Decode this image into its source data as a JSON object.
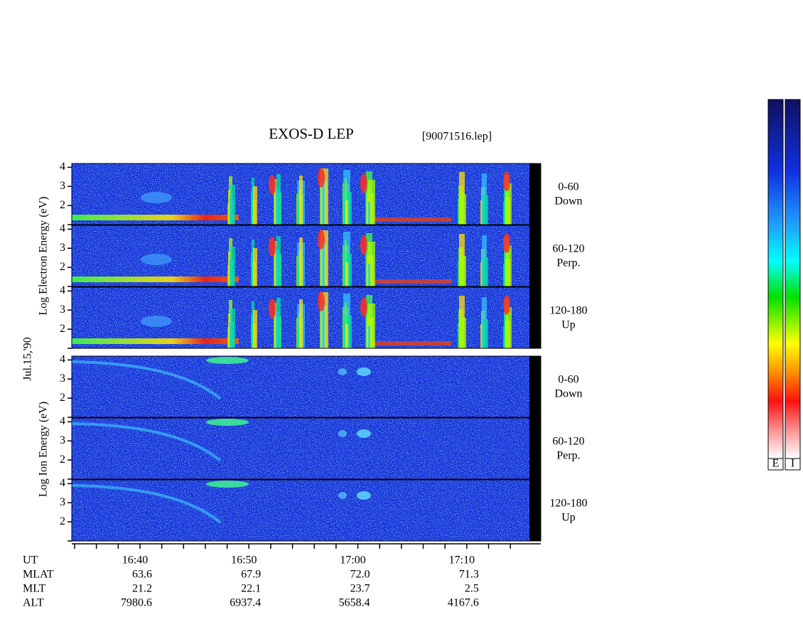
{
  "title": "EXOS-D LEP",
  "file": "[90071516.lep]",
  "date": "Jul.15,'90",
  "electron_axis_label": "Log Electron Energy (eV)",
  "ion_axis_label": "Log Ion Energy (eV)",
  "ylim": [
    1,
    4.2
  ],
  "yticks": [
    2,
    3,
    4
  ],
  "pitch_angles": [
    {
      "range": "0-60",
      "direction": "Down"
    },
    {
      "range": "60-120",
      "direction": "Perp."
    },
    {
      "range": "120-180",
      "direction": "Up"
    }
  ],
  "ephemeris": {
    "rows": [
      {
        "label": "UT",
        "values": [
          "16:40",
          "16:50",
          "17:00",
          "17:10"
        ]
      },
      {
        "label": "MLAT",
        "values": [
          "63.6",
          "67.9",
          "72.0",
          "71.3"
        ]
      },
      {
        "label": "MLT",
        "values": [
          "21.2",
          "22.1",
          "23.7",
          "2.5"
        ]
      },
      {
        "label": "ALT",
        "values": [
          "7980.6",
          "6937.4",
          "5658.4",
          "4167.6"
        ]
      }
    ]
  },
  "colorbars": [
    "E",
    "I"
  ]
}
